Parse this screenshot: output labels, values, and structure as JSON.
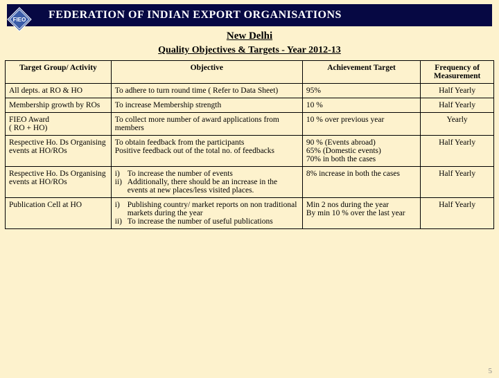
{
  "colors": {
    "background": "#fdf2cd",
    "titlebar_bg": "#060843",
    "titlebar_text": "#ffffff",
    "border": "#000000",
    "logo_fill": "#3a5ca8",
    "logo_text": "#ffffff"
  },
  "header": {
    "org_title": "FEDERATION OF INDIAN EXPORT ORGANISATIONS",
    "logo_text": "FIEO",
    "subtitle": "New Delhi",
    "section_title": "Quality Objectives & Targets - Year 2012-13"
  },
  "table": {
    "columns": [
      "Target Group/ Activity",
      "Objective",
      "Achievement Target",
      "Frequency of Measurement"
    ],
    "rows": [
      {
        "activity": "All depts.  at RO & HO",
        "objective_text": "To adhere to turn round time ( Refer to Data Sheet)",
        "target": "95%",
        "frequency": "Half Yearly"
      },
      {
        "activity": "Membership  growth by   ROs",
        "objective_text": "To increase Membership  strength",
        "target": "10 %",
        "frequency": "Half Yearly"
      },
      {
        "activity": "FIEO Award\n( RO + HO)",
        "objective_text": "To collect more number of award applications from members",
        "target": "10 % over previous year",
        "frequency": "Yearly"
      },
      {
        "activity": "Respective Ho. Ds Organising events at HO/ROs",
        "objective_text": "To obtain feedback from the participants\nPositive feedback out of the total no. of feedbacks",
        "target": "90 % (Events abroad)\n65% (Domestic events)\n70% in both the cases",
        "frequency": "Half Yearly"
      },
      {
        "activity": "Respective Ho. Ds Organising events at HO/ROs",
        "objective_list": [
          {
            "n": "i)",
            "t": "To increase the number of events"
          },
          {
            "n": "ii)",
            "t": "Additionally, there should be an increase in the events at new places/less visited places."
          }
        ],
        "target": "8% increase in both the cases",
        "frequency": "Half Yearly"
      },
      {
        "activity": "Publication Cell at HO",
        "objective_list": [
          {
            "n": "i)",
            "t": "Publishing country/ market reports on non traditional markets during the year"
          },
          {
            "n": "ii)",
            "t": "To increase the number of useful publications"
          }
        ],
        "target": "Min 2 nos during the year\nBy min 10 %  over the last year",
        "frequency": "Half Yearly"
      }
    ]
  },
  "page_number": "5"
}
